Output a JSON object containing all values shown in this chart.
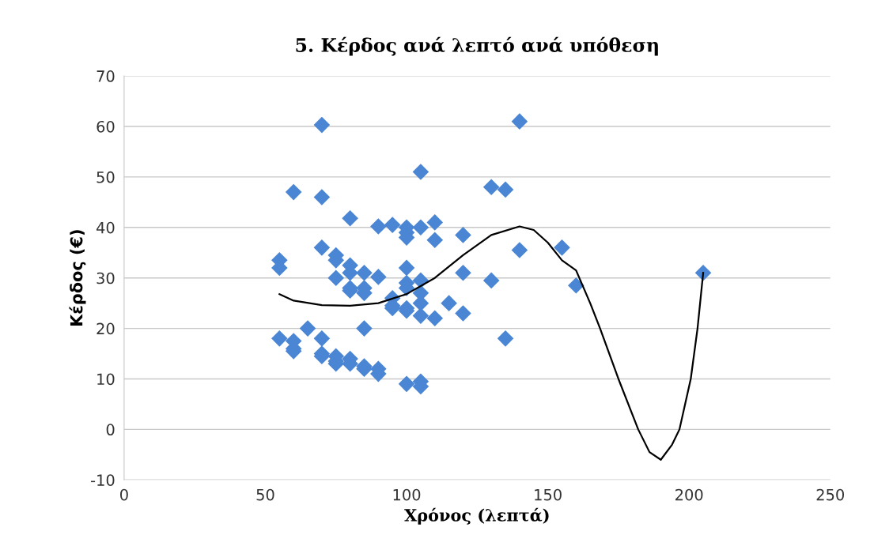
{
  "chart_data": {
    "type": "scatter",
    "title": "5. Κέρδος ανά λεπτό ανά υπόθεση",
    "xlabel": "Χρόνος (λεπτά)",
    "ylabel": "Κέρδος (€)",
    "xlim": [
      0,
      250
    ],
    "xticks": [
      0,
      50,
      100,
      150,
      200,
      250
    ],
    "ylim": [
      -10,
      70
    ],
    "yticks": [
      -10,
      0,
      10,
      20,
      30,
      40,
      50,
      60,
      70
    ],
    "grid": "y",
    "marker": "diamond",
    "series": [
      {
        "color": "#4a86d4",
        "x": [
          55,
          55,
          55,
          60,
          60,
          60,
          60,
          65,
          70,
          70,
          70,
          70,
          70,
          70,
          75,
          75,
          75,
          75,
          75,
          75,
          80,
          80,
          80,
          80,
          80,
          80,
          80,
          85,
          85,
          85,
          85,
          85,
          85,
          90,
          90,
          90,
          90,
          95,
          95,
          95,
          95,
          100,
          100,
          100,
          100,
          100,
          100,
          100,
          100,
          100,
          105,
          105,
          105,
          105,
          105,
          105,
          105,
          105,
          110,
          110,
          110,
          115,
          120,
          120,
          120,
          130,
          130,
          135,
          135,
          140,
          140,
          155,
          160,
          205
        ],
        "values": [
          33.5,
          32,
          18,
          47,
          17.5,
          16,
          15.5,
          20,
          60.3,
          46,
          36,
          18,
          15,
          14.5,
          34.5,
          33.5,
          30,
          14.5,
          13,
          13.5,
          41.8,
          32.5,
          31,
          28,
          27.5,
          14,
          13,
          31,
          28,
          27,
          20,
          12.5,
          12,
          40.2,
          30.2,
          12,
          11,
          40.5,
          26,
          24.5,
          24,
          40,
          39,
          38,
          32,
          29,
          28,
          24,
          23.5,
          9,
          51,
          40,
          29.5,
          27,
          25,
          22.5,
          9.5,
          8.5,
          41,
          37.5,
          22,
          25,
          38.5,
          31,
          23,
          48,
          29.5,
          47.5,
          18,
          61,
          35.5,
          36,
          28.5,
          31
        ]
      },
      {
        "type": "line",
        "color": "#000000",
        "line_style": "solid",
        "marker": "none",
        "x": [
          55,
          60,
          70,
          80,
          90,
          100,
          110,
          120,
          130,
          140,
          145,
          150,
          155,
          160,
          165,
          168.5,
          175,
          182,
          186,
          190,
          194,
          196.6,
          200.6,
          203,
          205
        ],
        "values": [
          26.8,
          25.5,
          24.6,
          24.5,
          25,
          26.8,
          30,
          34.5,
          38.5,
          40.2,
          39.5,
          37,
          33.5,
          31.5,
          25,
          20,
          10,
          0,
          -4.5,
          -6,
          -3,
          0,
          10,
          20,
          31
        ]
      }
    ]
  }
}
